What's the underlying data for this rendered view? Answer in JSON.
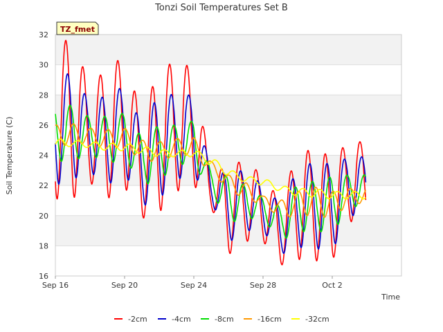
{
  "chart_data": {
    "type": "line",
    "title": "Tonzi Soil Temperatures Set B",
    "xlabel": "Time",
    "ylabel": "Soil Temperature (C)",
    "badge": "TZ_fmet",
    "x_unit": "day (Sep 16 = 0)",
    "xlim": [
      0,
      20
    ],
    "ylim": [
      16,
      32
    ],
    "y_ticks": [
      16,
      18,
      20,
      22,
      24,
      26,
      28,
      30,
      32
    ],
    "x_ticks": [
      {
        "value": 0,
        "label": "Sep 16"
      },
      {
        "value": 4,
        "label": "Sep 20"
      },
      {
        "value": 8,
        "label": "Sep 24"
      },
      {
        "value": 12,
        "label": "Sep 28"
      },
      {
        "value": 16,
        "label": "Oct 2"
      }
    ],
    "grid": true,
    "legend_position": "bottom-center",
    "series": [
      {
        "name": "-2cm",
        "color": "#ff0000",
        "offset": 0.0,
        "amp_scale": 1.0,
        "daily": [
          {
            "min": 21.1,
            "max": 31.5
          },
          {
            "min": 21.1,
            "max": 31.7
          },
          {
            "min": 22.2,
            "max": 28.6
          },
          {
            "min": 21.1,
            "max": 29.8
          },
          {
            "min": 21.9,
            "max": 30.6
          },
          {
            "min": 19.8,
            "max": 26.6
          },
          {
            "min": 20.2,
            "max": 29.8
          },
          {
            "min": 21.6,
            "max": 30.2
          },
          {
            "min": 22.0,
            "max": 29.8
          },
          {
            "min": 20.6,
            "max": 22.8
          },
          {
            "min": 17.4,
            "max": 23.3
          },
          {
            "min": 18.3,
            "max": 23.7
          },
          {
            "min": 18.3,
            "max": 22.6
          },
          {
            "min": 16.7,
            "max": 21.0
          },
          {
            "min": 17.1,
            "max": 24.2
          },
          {
            "min": 17.0,
            "max": 24.4
          },
          {
            "min": 17.0,
            "max": 23.9
          },
          {
            "min": 19.6,
            "max": 24.9
          }
        ]
      },
      {
        "name": "-4cm",
        "color": "#0000cc",
        "offset": 0.1,
        "amp_scale": 0.85,
        "daily": [
          {
            "min": 22.0,
            "max": 29.4
          },
          {
            "min": 22.4,
            "max": 29.4
          },
          {
            "min": 22.9,
            "max": 27.5
          },
          {
            "min": 22.0,
            "max": 28.0
          },
          {
            "min": 22.8,
            "max": 28.6
          },
          {
            "min": 20.6,
            "max": 26.0
          },
          {
            "min": 21.1,
            "max": 28.1
          },
          {
            "min": 22.4,
            "max": 28.0
          },
          {
            "min": 22.7,
            "max": 28.0
          },
          {
            "min": 21.0,
            "max": 22.8
          },
          {
            "min": 18.2,
            "max": 22.9
          },
          {
            "min": 19.0,
            "max": 23.0
          },
          {
            "min": 19.0,
            "max": 22.0
          },
          {
            "min": 17.4,
            "max": 20.8
          },
          {
            "min": 17.9,
            "max": 23.1
          },
          {
            "min": 17.8,
            "max": 23.6
          },
          {
            "min": 17.7,
            "max": 23.4
          },
          {
            "min": 20.0,
            "max": 23.9
          }
        ]
      },
      {
        "name": "-8cm",
        "color": "#00dd00",
        "offset": 0.25,
        "amp_scale": 0.55,
        "daily": [
          {
            "min": 23.6,
            "max": 27.4
          },
          {
            "min": 23.6,
            "max": 27.3
          },
          {
            "min": 24.1,
            "max": 26.5
          },
          {
            "min": 23.4,
            "max": 26.6
          },
          {
            "min": 23.8,
            "max": 26.8
          },
          {
            "min": 22.0,
            "max": 25.2
          },
          {
            "min": 22.3,
            "max": 26.0
          },
          {
            "min": 23.4,
            "max": 26.0
          },
          {
            "min": 23.4,
            "max": 26.3
          },
          {
            "min": 21.6,
            "max": 22.9
          },
          {
            "min": 19.5,
            "max": 22.6
          },
          {
            "min": 19.8,
            "max": 22.0
          },
          {
            "min": 19.8,
            "max": 21.2
          },
          {
            "min": 18.3,
            "max": 20.6
          },
          {
            "min": 18.9,
            "max": 22.1
          },
          {
            "min": 19.0,
            "max": 22.3
          },
          {
            "min": 18.8,
            "max": 22.6
          },
          {
            "min": 20.6,
            "max": 22.7
          }
        ]
      },
      {
        "name": "-16cm",
        "color": "#ff9900",
        "offset": 0.45,
        "amp_scale": 0.3,
        "daily": [
          {
            "min": 24.6,
            "max": 26.0
          },
          {
            "min": 24.7,
            "max": 26.1
          },
          {
            "min": 24.8,
            "max": 25.8
          },
          {
            "min": 24.4,
            "max": 25.7
          },
          {
            "min": 24.6,
            "max": 25.8
          },
          {
            "min": 23.6,
            "max": 25.0
          },
          {
            "min": 23.6,
            "max": 24.9
          },
          {
            "min": 24.0,
            "max": 25.1
          },
          {
            "min": 24.0,
            "max": 25.2
          },
          {
            "min": 22.8,
            "max": 23.6
          },
          {
            "min": 21.8,
            "max": 22.7
          },
          {
            "min": 21.0,
            "max": 22.2
          },
          {
            "min": 20.8,
            "max": 21.3
          },
          {
            "min": 19.8,
            "max": 21.0
          },
          {
            "min": 20.0,
            "max": 21.6
          },
          {
            "min": 20.0,
            "max": 21.9
          },
          {
            "min": 19.8,
            "max": 21.6
          },
          {
            "min": 20.8,
            "max": 21.8
          }
        ]
      },
      {
        "name": "-32cm",
        "color": "#ffff00",
        "offset": 0.7,
        "amp_scale": 0.12,
        "daily": [
          {
            "min": 24.5,
            "max": 25.1
          },
          {
            "min": 24.6,
            "max": 25.0
          },
          {
            "min": 24.5,
            "max": 24.9
          },
          {
            "min": 24.3,
            "max": 24.8
          },
          {
            "min": 24.3,
            "max": 24.8
          },
          {
            "min": 24.1,
            "max": 24.6
          },
          {
            "min": 23.9,
            "max": 24.4
          },
          {
            "min": 23.9,
            "max": 24.3
          },
          {
            "min": 23.9,
            "max": 24.4
          },
          {
            "min": 23.3,
            "max": 23.9
          },
          {
            "min": 22.6,
            "max": 23.1
          },
          {
            "min": 22.2,
            "max": 22.6
          },
          {
            "min": 22.0,
            "max": 22.5
          },
          {
            "min": 21.6,
            "max": 22.0
          },
          {
            "min": 21.3,
            "max": 21.8
          },
          {
            "min": 21.2,
            "max": 21.8
          },
          {
            "min": 21.1,
            "max": 21.6
          },
          {
            "min": 21.1,
            "max": 21.6
          }
        ]
      }
    ]
  }
}
